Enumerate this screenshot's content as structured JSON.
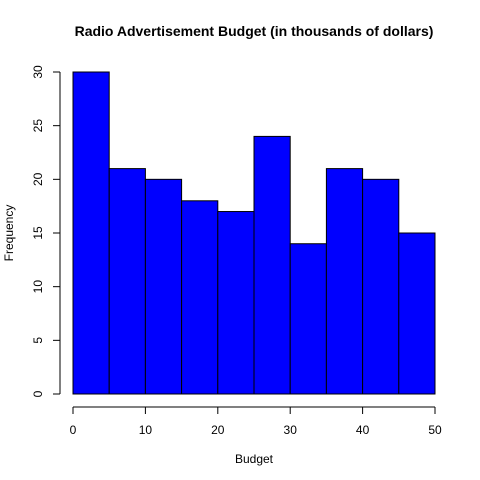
{
  "chart_data": {
    "type": "bar",
    "title": "Radio Advertisement Budget (in thousands of dollars)",
    "xlabel": "Budget",
    "ylabel": "Frequency",
    "bins": [
      {
        "start": 0,
        "end": 5,
        "value": 30
      },
      {
        "start": 5,
        "end": 10,
        "value": 21
      },
      {
        "start": 10,
        "end": 15,
        "value": 20
      },
      {
        "start": 15,
        "end": 20,
        "value": 18
      },
      {
        "start": 20,
        "end": 25,
        "value": 17
      },
      {
        "start": 25,
        "end": 30,
        "value": 24
      },
      {
        "start": 30,
        "end": 35,
        "value": 14
      },
      {
        "start": 35,
        "end": 40,
        "value": 21
      },
      {
        "start": 40,
        "end": 45,
        "value": 20
      },
      {
        "start": 45,
        "end": 50,
        "value": 15
      }
    ],
    "xlim": [
      0,
      50
    ],
    "ylim": [
      0,
      30
    ],
    "x_ticks": [
      0,
      10,
      20,
      30,
      40,
      50
    ],
    "y_ticks": [
      0,
      5,
      10,
      15,
      20,
      25,
      30
    ],
    "bar_color": "#0000ff",
    "grid": false,
    "legend": "none"
  }
}
